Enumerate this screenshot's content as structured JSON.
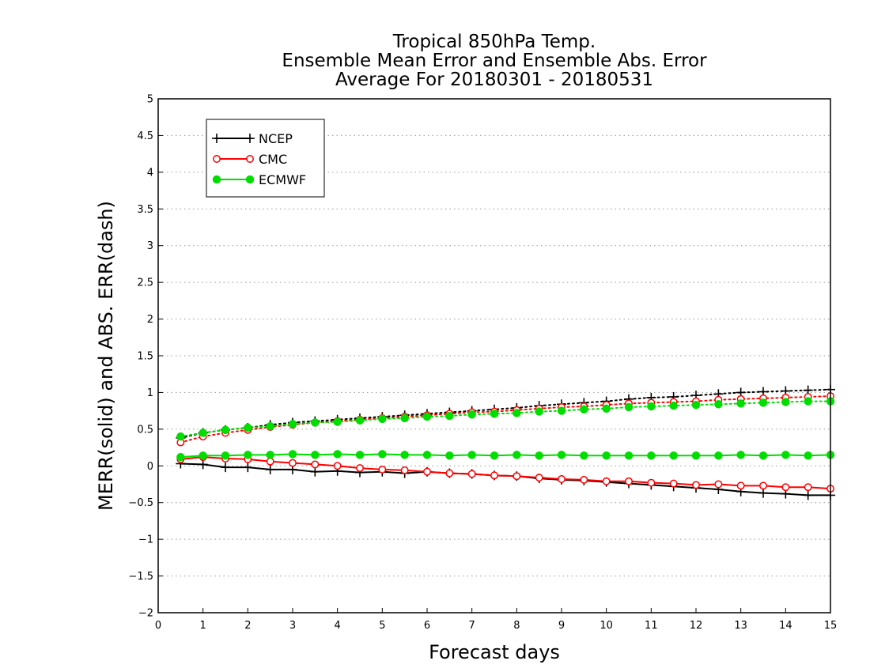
{
  "chart_data": {
    "type": "line",
    "title_lines": [
      "Tropical 850hPa Temp.",
      "Ensemble Mean Error and Ensemble Abs. Error",
      "Average For 20180301 - 20180531"
    ],
    "xlabel": "Forecast days",
    "ylabel": "MERR(solid) and ABS. ERR(dash)",
    "xlim": [
      0,
      15
    ],
    "ylim": [
      -2,
      5
    ],
    "x_ticks": [
      0,
      1,
      2,
      3,
      4,
      5,
      6,
      7,
      8,
      9,
      10,
      11,
      12,
      13,
      14,
      15
    ],
    "x_tick_labels": [
      "0",
      "1",
      "2",
      "3",
      "4",
      "5",
      "6",
      "7",
      "8",
      "9",
      "10",
      "11",
      "12",
      "13",
      "14",
      "15"
    ],
    "y_ticks": [
      -2,
      -1.5,
      -1,
      -0.5,
      0,
      0.5,
      1,
      1.5,
      2,
      2.5,
      3,
      3.5,
      4,
      4.5,
      5
    ],
    "y_tick_labels": [
      "−2",
      "−1.5",
      "−1",
      "−0.5",
      "0",
      "0.5",
      "1",
      "1.5",
      "2",
      "2.5",
      "3",
      "3.5",
      "4",
      "4.5",
      "5"
    ],
    "grid": "horizontal dotted",
    "legend_position": "top-left",
    "x": [
      0.5,
      1,
      1.5,
      2,
      2.5,
      3,
      3.5,
      4,
      4.5,
      5,
      5.5,
      6,
      6.5,
      7,
      7.5,
      8,
      8.5,
      9,
      9.5,
      10,
      10.5,
      11,
      11.5,
      12,
      12.5,
      13,
      13.5,
      14,
      14.5,
      15
    ],
    "series": [
      {
        "name": "NCEP",
        "color": "#000000",
        "marker": "plus",
        "merr": [
          0.03,
          0.02,
          -0.02,
          -0.02,
          -0.05,
          -0.05,
          -0.08,
          -0.07,
          -0.09,
          -0.08,
          -0.1,
          -0.08,
          -0.1,
          -0.11,
          -0.13,
          -0.14,
          -0.17,
          -0.19,
          -0.2,
          -0.22,
          -0.24,
          -0.26,
          -0.28,
          -0.3,
          -0.32,
          -0.35,
          -0.37,
          -0.38,
          -0.4,
          -0.4
        ],
        "abs_err": [
          0.38,
          0.45,
          0.49,
          0.52,
          0.56,
          0.59,
          0.61,
          0.63,
          0.65,
          0.67,
          0.69,
          0.71,
          0.73,
          0.75,
          0.77,
          0.79,
          0.82,
          0.84,
          0.86,
          0.88,
          0.91,
          0.93,
          0.94,
          0.96,
          0.98,
          1.0,
          1.01,
          1.02,
          1.03,
          1.04
        ]
      },
      {
        "name": "CMC",
        "color": "#ff0000",
        "marker": "open-circle",
        "merr": [
          0.09,
          0.12,
          0.1,
          0.09,
          0.06,
          0.04,
          0.02,
          0.0,
          -0.03,
          -0.05,
          -0.06,
          -0.08,
          -0.1,
          -0.11,
          -0.13,
          -0.14,
          -0.16,
          -0.18,
          -0.19,
          -0.21,
          -0.21,
          -0.23,
          -0.24,
          -0.26,
          -0.25,
          -0.27,
          -0.27,
          -0.29,
          -0.29,
          -0.31
        ],
        "abs_err": [
          0.32,
          0.4,
          0.45,
          0.49,
          0.53,
          0.56,
          0.59,
          0.61,
          0.63,
          0.65,
          0.67,
          0.69,
          0.71,
          0.73,
          0.74,
          0.76,
          0.78,
          0.8,
          0.81,
          0.83,
          0.85,
          0.86,
          0.87,
          0.88,
          0.9,
          0.91,
          0.92,
          0.93,
          0.94,
          0.95
        ]
      },
      {
        "name": "ECMWF",
        "color": "#00dd00",
        "marker": "filled-circle",
        "merr": [
          0.12,
          0.14,
          0.14,
          0.15,
          0.15,
          0.16,
          0.15,
          0.16,
          0.15,
          0.16,
          0.15,
          0.15,
          0.14,
          0.15,
          0.14,
          0.15,
          0.14,
          0.15,
          0.14,
          0.14,
          0.14,
          0.14,
          0.14,
          0.14,
          0.14,
          0.15,
          0.14,
          0.15,
          0.14,
          0.15
        ],
        "abs_err": [
          0.4,
          0.45,
          0.49,
          0.52,
          0.54,
          0.57,
          0.59,
          0.6,
          0.62,
          0.64,
          0.65,
          0.67,
          0.68,
          0.7,
          0.71,
          0.72,
          0.74,
          0.75,
          0.77,
          0.78,
          0.8,
          0.81,
          0.82,
          0.83,
          0.84,
          0.85,
          0.86,
          0.87,
          0.88,
          0.88
        ]
      }
    ]
  }
}
